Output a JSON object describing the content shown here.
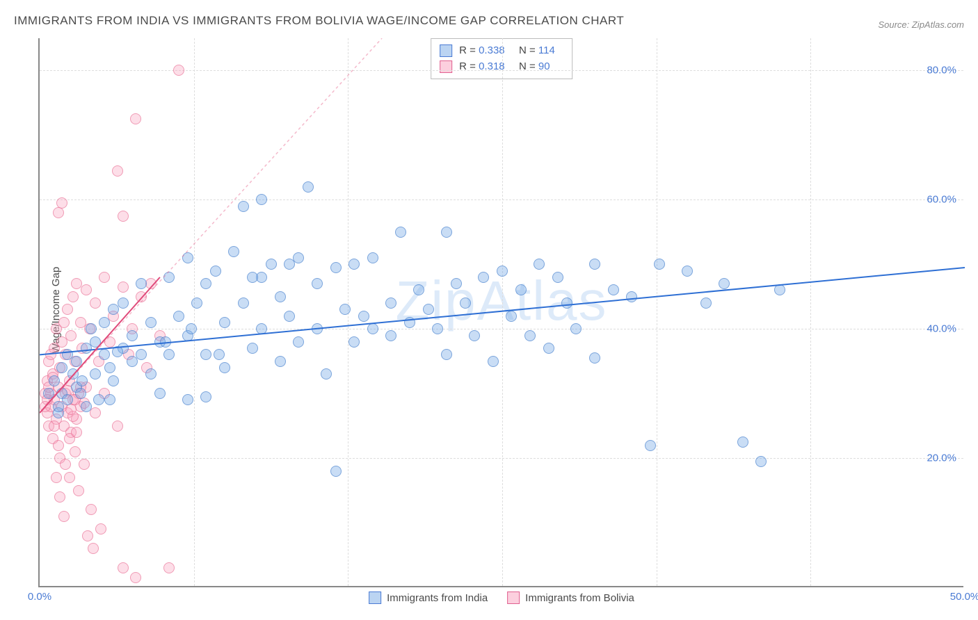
{
  "title": "IMMIGRANTS FROM INDIA VS IMMIGRANTS FROM BOLIVIA WAGE/INCOME GAP CORRELATION CHART",
  "source": "Source: ZipAtlas.com",
  "ylabel": "Wage/Income Gap",
  "watermark": "ZipAtlas",
  "chart": {
    "type": "scatter",
    "xlim": [
      0,
      50
    ],
    "ylim": [
      0,
      85
    ],
    "xtick_labels": [
      "0.0%",
      "50.0%"
    ],
    "xtick_positions": [
      0,
      50
    ],
    "xtick_minor": [
      8.33,
      16.67,
      25,
      33.33,
      41.67
    ],
    "ytick_labels": [
      "20.0%",
      "40.0%",
      "60.0%",
      "80.0%"
    ],
    "ytick_positions": [
      20,
      40,
      60,
      80
    ],
    "background_color": "#ffffff",
    "grid_color": "#dddddd",
    "axis_color": "#888888",
    "marker_radius": 8,
    "series": [
      {
        "name": "Immigrants from India",
        "color_fill": "rgba(120,170,230,0.4)",
        "color_stroke": "rgba(60,120,200,0.55)",
        "trend_color": "#2e6fd4",
        "trend_width": 2,
        "trend_dash": "none",
        "trend": {
          "x1": 0,
          "y1": 36,
          "x2": 50,
          "y2": 49.5
        },
        "R": "0.338",
        "N": "114",
        "points": [
          [
            0.5,
            30
          ],
          [
            0.8,
            32
          ],
          [
            1.0,
            27
          ],
          [
            1.0,
            28
          ],
          [
            1.2,
            34
          ],
          [
            1.2,
            30
          ],
          [
            1.5,
            36
          ],
          [
            1.5,
            29
          ],
          [
            1.8,
            33
          ],
          [
            2.0,
            35
          ],
          [
            2.0,
            31
          ],
          [
            2.2,
            30
          ],
          [
            2.5,
            37
          ],
          [
            2.5,
            28
          ],
          [
            2.8,
            40
          ],
          [
            3.0,
            38
          ],
          [
            3.0,
            33
          ],
          [
            3.2,
            29
          ],
          [
            3.5,
            41
          ],
          [
            3.5,
            36
          ],
          [
            3.8,
            34
          ],
          [
            4.0,
            43
          ],
          [
            4.0,
            32
          ],
          [
            4.5,
            37
          ],
          [
            4.5,
            44
          ],
          [
            5.0,
            35
          ],
          [
            5.0,
            39
          ],
          [
            5.5,
            47
          ],
          [
            5.5,
            36
          ],
          [
            6.0,
            41
          ],
          [
            6.0,
            33
          ],
          [
            6.5,
            38
          ],
          [
            7.0,
            48
          ],
          [
            7.0,
            36
          ],
          [
            7.5,
            42
          ],
          [
            8.0,
            51
          ],
          [
            8.0,
            39
          ],
          [
            8.5,
            44
          ],
          [
            9.0,
            47
          ],
          [
            9.0,
            36
          ],
          [
            9.5,
            49
          ],
          [
            10,
            41
          ],
          [
            10,
            34
          ],
          [
            10.5,
            52
          ],
          [
            11,
            59
          ],
          [
            11,
            44
          ],
          [
            11.5,
            37
          ],
          [
            12,
            48
          ],
          [
            12,
            40
          ],
          [
            12.5,
            50
          ],
          [
            13,
            45
          ],
          [
            13,
            35
          ],
          [
            13.5,
            42
          ],
          [
            14,
            51
          ],
          [
            14,
            38
          ],
          [
            14.5,
            62
          ],
          [
            15,
            47
          ],
          [
            15,
            40
          ],
          [
            15.5,
            33
          ],
          [
            16,
            49.5
          ],
          [
            16,
            18
          ],
          [
            16.5,
            43
          ],
          [
            17,
            50
          ],
          [
            17,
            38
          ],
          [
            17.5,
            42
          ],
          [
            18,
            51
          ],
          [
            18,
            40
          ],
          [
            19,
            44
          ],
          [
            19,
            39
          ],
          [
            19.5,
            55
          ],
          [
            20,
            41
          ],
          [
            20.5,
            46
          ],
          [
            21,
            43
          ],
          [
            21.5,
            40
          ],
          [
            22,
            55
          ],
          [
            22,
            36
          ],
          [
            22.5,
            47
          ],
          [
            23,
            44
          ],
          [
            23.5,
            39
          ],
          [
            24,
            48
          ],
          [
            24.5,
            35
          ],
          [
            25,
            49
          ],
          [
            25.5,
            42
          ],
          [
            26,
            46
          ],
          [
            26.5,
            39
          ],
          [
            27,
            50
          ],
          [
            27.5,
            37
          ],
          [
            28,
            48
          ],
          [
            28.5,
            44
          ],
          [
            29,
            40
          ],
          [
            30,
            35.5
          ],
          [
            30,
            50
          ],
          [
            31,
            46
          ],
          [
            32,
            45
          ],
          [
            33,
            22
          ],
          [
            33.5,
            50
          ],
          [
            35,
            49
          ],
          [
            36,
            44
          ],
          [
            37,
            47
          ],
          [
            38,
            22.5
          ],
          [
            39,
            19.5
          ],
          [
            40,
            46
          ],
          [
            8,
            29
          ],
          [
            9,
            29.5
          ],
          [
            6.5,
            30
          ],
          [
            12,
            60
          ],
          [
            13.5,
            50
          ],
          [
            4.2,
            36.5
          ],
          [
            3.8,
            29
          ],
          [
            2.3,
            32
          ],
          [
            6.8,
            38
          ],
          [
            8.2,
            40
          ],
          [
            9.7,
            36
          ],
          [
            11.5,
            48
          ]
        ]
      },
      {
        "name": "Immigrants from Bolivia",
        "color_fill": "rgba(250,160,190,0.35)",
        "color_stroke": "rgba(230,100,140,0.55)",
        "trend_color": "#e04a7a",
        "trend_width": 2,
        "trend_dash": "none",
        "trend": {
          "x1": 0,
          "y1": 27,
          "x2": 6.5,
          "y2": 48
        },
        "trend_ext": {
          "x1": 0,
          "y1": 27,
          "x2": 18.5,
          "y2": 85,
          "dash": "4,4",
          "color": "rgba(230,100,140,0.45)"
        },
        "R": "0.318",
        "N": "90",
        "points": [
          [
            0.3,
            30
          ],
          [
            0.4,
            32
          ],
          [
            0.4,
            27
          ],
          [
            0.5,
            35
          ],
          [
            0.5,
            25
          ],
          [
            0.6,
            28
          ],
          [
            0.6,
            30
          ],
          [
            0.7,
            33
          ],
          [
            0.7,
            23
          ],
          [
            0.8,
            37
          ],
          [
            0.8,
            29
          ],
          [
            0.9,
            40
          ],
          [
            0.9,
            26
          ],
          [
            1.0,
            31
          ],
          [
            1.0,
            22
          ],
          [
            1.1,
            34
          ],
          [
            1.1,
            20
          ],
          [
            1.2,
            38
          ],
          [
            1.2,
            28
          ],
          [
            1.3,
            41
          ],
          [
            1.3,
            25
          ],
          [
            1.4,
            36
          ],
          [
            1.4,
            30
          ],
          [
            1.5,
            43
          ],
          [
            1.5,
            27
          ],
          [
            1.6,
            32
          ],
          [
            1.6,
            17
          ],
          [
            1.7,
            39
          ],
          [
            1.7,
            24
          ],
          [
            1.8,
            45
          ],
          [
            1.8,
            29
          ],
          [
            1.9,
            35
          ],
          [
            1.9,
            21
          ],
          [
            2.0,
            47
          ],
          [
            2.0,
            26
          ],
          [
            2.1,
            30
          ],
          [
            2.1,
            15
          ],
          [
            2.2,
            41
          ],
          [
            2.2,
            28
          ],
          [
            2.3,
            37
          ],
          [
            2.4,
            19
          ],
          [
            2.5,
            46
          ],
          [
            2.5,
            31
          ],
          [
            2.6,
            8
          ],
          [
            2.7,
            40
          ],
          [
            2.8,
            12
          ],
          [
            2.9,
            6
          ],
          [
            3.0,
            44
          ],
          [
            3.0,
            27
          ],
          [
            3.2,
            35
          ],
          [
            3.3,
            9
          ],
          [
            3.5,
            48
          ],
          [
            3.5,
            30
          ],
          [
            3.8,
            38
          ],
          [
            4.0,
            42
          ],
          [
            4.2,
            25
          ],
          [
            4.5,
            46.5
          ],
          [
            4.5,
            3
          ],
          [
            4.8,
            36
          ],
          [
            5.0,
            40
          ],
          [
            5.2,
            1.5
          ],
          [
            5.5,
            45
          ],
          [
            5.8,
            34
          ],
          [
            6.0,
            47
          ],
          [
            6.5,
            39
          ],
          [
            7.0,
            3
          ],
          [
            7.5,
            80
          ],
          [
            4.5,
            57.5
          ],
          [
            1.0,
            58
          ],
          [
            1.2,
            59.5
          ],
          [
            4.2,
            64.5
          ],
          [
            5.2,
            72.5
          ],
          [
            0.9,
            17
          ],
          [
            1.1,
            14
          ],
          [
            1.3,
            11
          ],
          [
            0.7,
            32.5
          ],
          [
            0.8,
            25
          ],
          [
            0.6,
            36
          ],
          [
            1.4,
            19
          ],
          [
            1.6,
            23
          ],
          [
            1.8,
            26.5
          ],
          [
            2.0,
            24
          ],
          [
            2.2,
            31
          ],
          [
            2.4,
            28.5
          ],
          [
            1.5,
            30.5
          ],
          [
            1.7,
            27.5
          ],
          [
            1.9,
            29
          ],
          [
            0.5,
            31
          ],
          [
            0.4,
            29
          ],
          [
            0.3,
            28
          ]
        ]
      }
    ]
  },
  "legend_bottom": [
    {
      "swatch": "blue",
      "label": "Immigrants from India"
    },
    {
      "swatch": "pink",
      "label": "Immigrants from Bolivia"
    }
  ]
}
